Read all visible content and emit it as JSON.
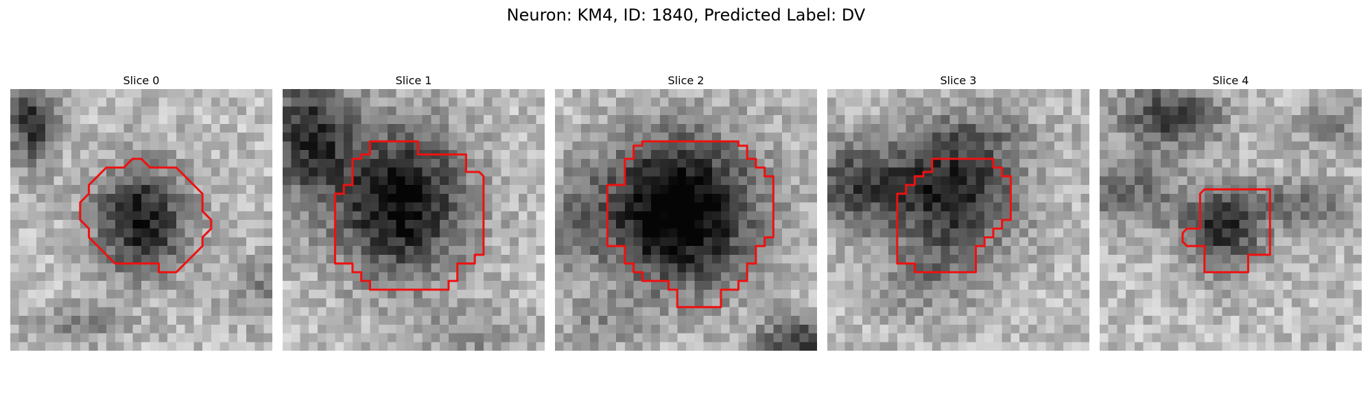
{
  "figure": {
    "title": "Neuron: KM4, ID: 1840, Predicted Label: DV"
  },
  "colors": {
    "contour": "#ee1111",
    "background": "#ffffff"
  },
  "panels": [
    {
      "title": "Slice 0",
      "seed": 11
    },
    {
      "title": "Slice 1",
      "seed": 23
    },
    {
      "title": "Slice 2",
      "seed": 37
    },
    {
      "title": "Slice 3",
      "seed": 41
    },
    {
      "title": "Slice 4",
      "seed": 53
    }
  ]
}
